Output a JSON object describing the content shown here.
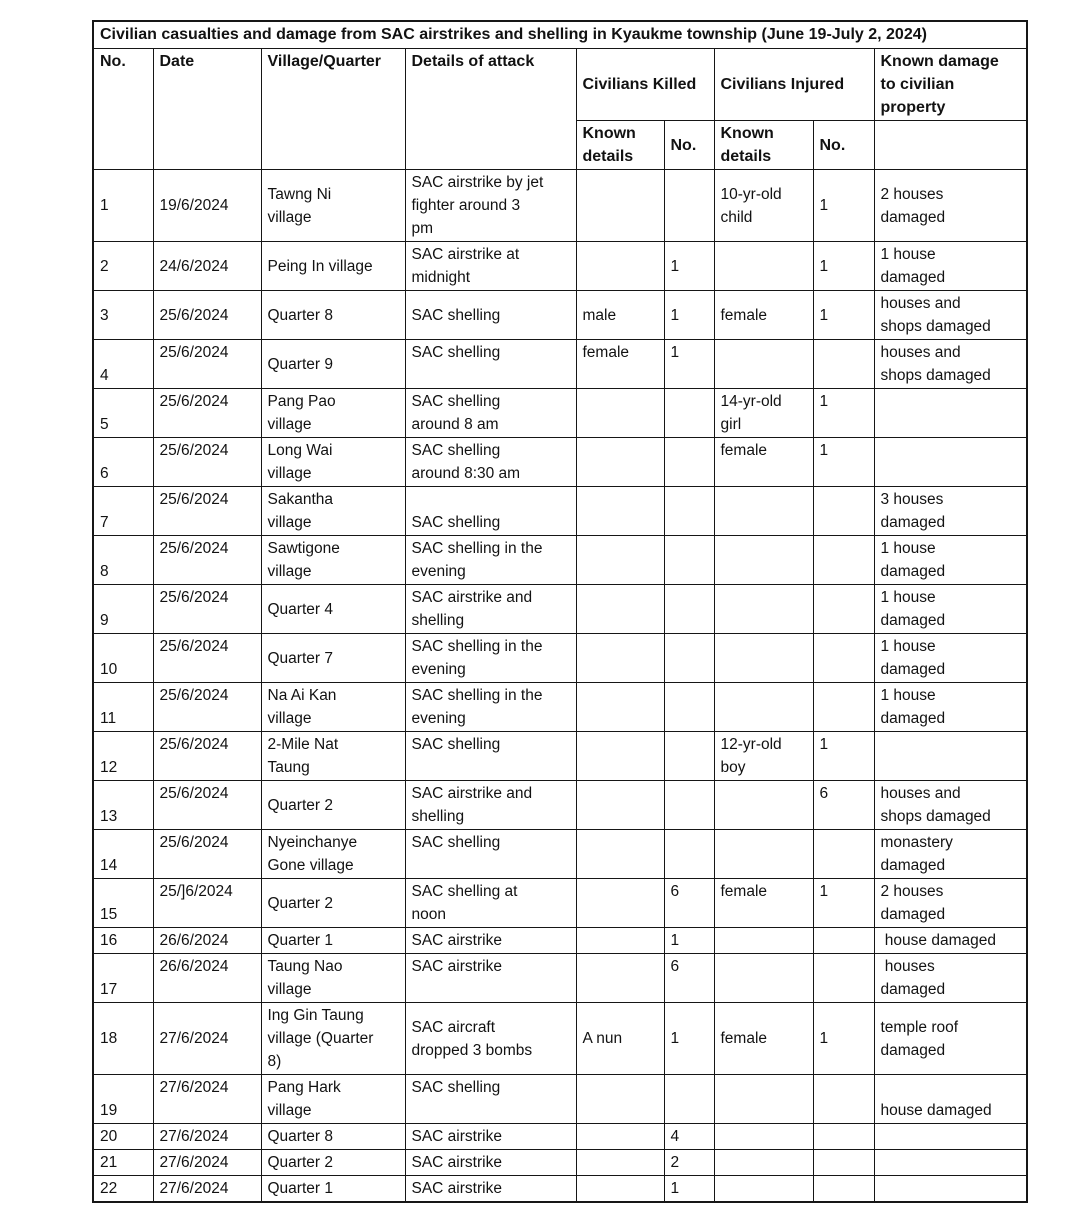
{
  "header": {
    "title": "Civilian casualties and damage from SAC airstrikes and shelling in Kyaukme township (June 19-July 2, 2024)",
    "no": "No.",
    "date": "Date",
    "village": "Village/Quarter",
    "details": "Details of attack",
    "civilians_killed": "Civilians Killed",
    "civilians_injured": "Civilians Injured",
    "damage": "Known damage\nto civilian\nproperty",
    "known_details": "Known\ndetails",
    "number": "No."
  },
  "rows": [
    {
      "no": "1",
      "date": "19/6/2024",
      "village": "Tawng Ni\nvillage",
      "details": "SAC airstrike by jet\nfighter around 3\npm",
      "killed_details": "",
      "killed_no": "",
      "injured_details": "10-yr-old\nchild",
      "injured_no": "1",
      "damage": "2 houses\ndamaged"
    },
    {
      "no": "2",
      "date": "24/6/2024",
      "village": "Peing In village",
      "details": "SAC airstrike at\nmidnight",
      "killed_details": "",
      "killed_no": "1",
      "injured_details": "",
      "injured_no": "1",
      "damage": "1 house\ndamaged"
    },
    {
      "no": "3",
      "date": "25/6/2024",
      "village": "Quarter 8",
      "details": "SAC shelling",
      "killed_details": "male",
      "killed_no": "1",
      "injured_details": "female",
      "injured_no": "1",
      "damage": "houses and\nshops damaged"
    },
    {
      "no": "4",
      "date": "25/6/2024",
      "village": "Quarter 9",
      "details": "SAC shelling",
      "killed_details": "female",
      "killed_no": "1",
      "injured_details": "",
      "injured_no": "",
      "damage": "houses and\nshops damaged"
    },
    {
      "no": "5",
      "date": "25/6/2024",
      "village": "Pang Pao\nvillage",
      "details": "SAC shelling\naround 8 am",
      "killed_details": "",
      "killed_no": "",
      "injured_details": "14-yr-old\ngirl",
      "injured_no": "1",
      "damage": ""
    },
    {
      "no": "6",
      "date": "25/6/2024",
      "village": "Long Wai\nvillage",
      "details": "SAC shelling\naround 8:30 am",
      "killed_details": "",
      "killed_no": "",
      "injured_details": "female",
      "injured_no": "1",
      "damage": ""
    },
    {
      "no": "7",
      "date": "25/6/2024",
      "village": "Sakantha\nvillage",
      "details": "SAC shelling",
      "killed_details": "",
      "killed_no": "",
      "injured_details": "",
      "injured_no": "",
      "damage": "3 houses\ndamaged"
    },
    {
      "no": "8",
      "date": "25/6/2024",
      "village": "Sawtigone\nvillage",
      "details": "SAC shelling in the\nevening",
      "killed_details": "",
      "killed_no": "",
      "injured_details": "",
      "injured_no": "",
      "damage": "1 house\ndamaged"
    },
    {
      "no": "9",
      "date": "25/6/2024",
      "village": "Quarter 4",
      "details": "SAC airstrike and\nshelling",
      "killed_details": "",
      "killed_no": "",
      "injured_details": "",
      "injured_no": "",
      "damage": "1 house\ndamaged"
    },
    {
      "no": "10",
      "date": "25/6/2024",
      "village": "Quarter 7",
      "details": "SAC shelling in the\nevening",
      "killed_details": "",
      "killed_no": "",
      "injured_details": "",
      "injured_no": "",
      "damage": "1 house\ndamaged"
    },
    {
      "no": "11",
      "date": "25/6/2024",
      "village": "Na Ai Kan\nvillage",
      "details": "SAC shelling in the\nevening",
      "killed_details": "",
      "killed_no": "",
      "injured_details": "",
      "injured_no": "",
      "damage": "1 house\ndamaged"
    },
    {
      "no": "12",
      "date": "25/6/2024",
      "village": "2-Mile Nat\nTaung",
      "details": "SAC shelling",
      "killed_details": "",
      "killed_no": "",
      "injured_details": "12-yr-old\nboy",
      "injured_no": "1",
      "damage": ""
    },
    {
      "no": "13",
      "date": "25/6/2024",
      "village": "Quarter 2",
      "details": "SAC airstrike and\nshelling",
      "killed_details": "",
      "killed_no": "",
      "injured_details": "",
      "injured_no": "6",
      "damage": "houses and\nshops damaged"
    },
    {
      "no": "14",
      "date": "25/6/2024",
      "village": "Nyeinchanye\nGone village",
      "details": "SAC shelling",
      "killed_details": "",
      "killed_no": "",
      "injured_details": "",
      "injured_no": "",
      "damage": "monastery\ndamaged"
    },
    {
      "no": "15",
      "date": "25/]6/2024",
      "village": "Quarter 2",
      "details": "SAC shelling at\nnoon",
      "killed_details": "",
      "killed_no": "6",
      "injured_details": "female",
      "injured_no": "1",
      "damage": "2 houses\ndamaged"
    },
    {
      "no": "16",
      "date": "26/6/2024",
      "village": "Quarter 1",
      "details": "SAC airstrike",
      "killed_details": "",
      "killed_no": "1",
      "injured_details": "",
      "injured_no": "",
      "damage": " house damaged"
    },
    {
      "no": "17",
      "date": "26/6/2024",
      "village": "Taung Nao\nvillage",
      "details": "SAC airstrike",
      "killed_details": "",
      "killed_no": "6",
      "injured_details": "",
      "injured_no": "",
      "damage": " houses\ndamaged"
    },
    {
      "no": "18",
      "date": "27/6/2024",
      "village": "Ing Gin Taung\nvillage (Quarter\n8)",
      "details": "SAC aircraft\ndropped 3 bombs",
      "killed_details": "A nun",
      "killed_no": "1",
      "injured_details": "female",
      "injured_no": "1",
      "damage": "temple roof\ndamaged"
    },
    {
      "no": "19",
      "date": "27/6/2024",
      "village": "Pang Hark\nvillage",
      "details": "SAC shelling",
      "killed_details": "",
      "killed_no": "",
      "injured_details": "",
      "injured_no": "",
      "damage": "house damaged"
    },
    {
      "no": "20",
      "date": "27/6/2024",
      "village": "Quarter 8",
      "details": "SAC airstrike",
      "killed_details": "",
      "killed_no": "4",
      "injured_details": "",
      "injured_no": "",
      "damage": ""
    },
    {
      "no": "21",
      "date": "27/6/2024",
      "village": "Quarter 2",
      "details": "SAC airstrike",
      "killed_details": "",
      "killed_no": "2",
      "injured_details": "",
      "injured_no": "",
      "damage": ""
    },
    {
      "no": "22",
      "date": "27/6/2024",
      "village": "Quarter 1",
      "details": "SAC airstrike",
      "killed_details": "",
      "killed_no": "1",
      "injured_details": "",
      "injured_no": "",
      "damage": ""
    }
  ]
}
